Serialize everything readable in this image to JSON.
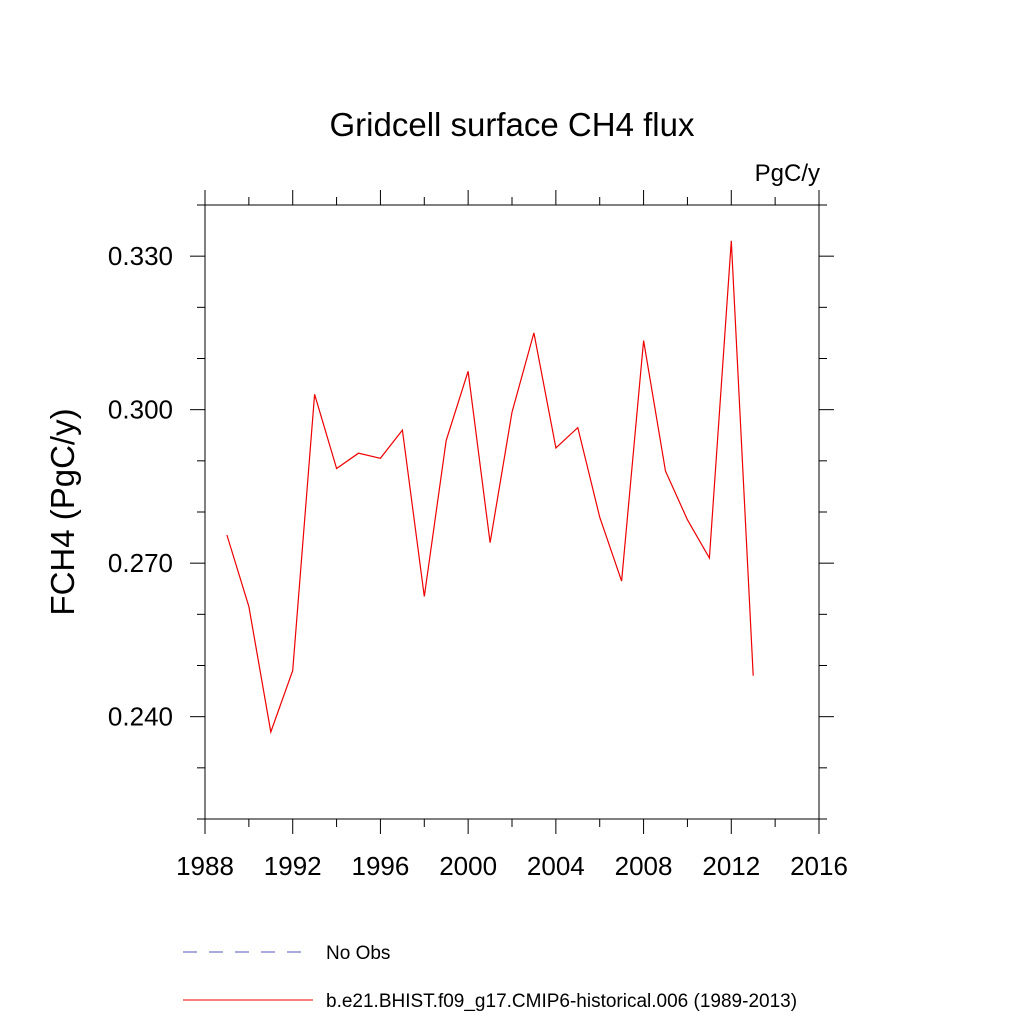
{
  "chart_data": {
    "type": "line",
    "title": "Gridcell surface CH4 flux",
    "units_label": "PgC/y",
    "xlabel": "",
    "ylabel": "FCH4  (PgC/y)",
    "xlim": [
      1988,
      2016
    ],
    "ylim": [
      0.22,
      0.34
    ],
    "x_ticks": [
      1988,
      1992,
      1996,
      2000,
      2004,
      2008,
      2012,
      2016
    ],
    "x_tick_labels": [
      "1988",
      "1992",
      "1996",
      "2000",
      "2004",
      "2008",
      "2012",
      "2016"
    ],
    "y_ticks": [
      0.24,
      0.27,
      0.3,
      0.33
    ],
    "y_tick_labels": [
      "0.240",
      "0.270",
      "0.300",
      "0.330"
    ],
    "grid": false,
    "legend": "bottom",
    "series": [
      {
        "name": "No Obs",
        "color": "#5555bb",
        "style": "dashed",
        "x": [],
        "values": []
      },
      {
        "name": "b.e21.BHIST.f09_g17.CMIP6-historical.006 (1989-2013)",
        "color": "#ee0000",
        "style": "solid",
        "x": [
          1989,
          1990,
          1991,
          1992,
          1993,
          1994,
          1995,
          1996,
          1997,
          1998,
          1999,
          2000,
          2001,
          2002,
          2003,
          2004,
          2005,
          2006,
          2007,
          2008,
          2009,
          2010,
          2011,
          2012,
          2013
        ],
        "values": [
          0.2755,
          0.2615,
          0.237,
          0.249,
          0.303,
          0.2885,
          0.2915,
          0.2905,
          0.296,
          0.2635,
          0.294,
          0.3075,
          0.274,
          0.2995,
          0.315,
          0.2925,
          0.2965,
          0.279,
          0.2665,
          0.3135,
          0.288,
          0.2785,
          0.271,
          0.333,
          0.248
        ]
      }
    ]
  }
}
